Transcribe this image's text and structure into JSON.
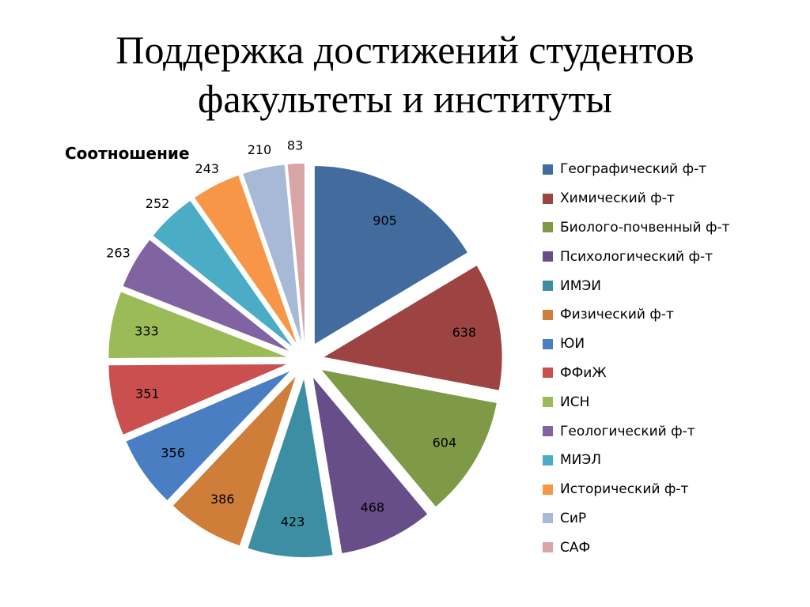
{
  "slide": {
    "title_line1": "Поддержка достижений студентов",
    "title_line2": "факультеты и институты"
  },
  "chart_data": {
    "type": "pie",
    "title": "Соотношение",
    "legend_position": "right",
    "exploded": true,
    "categories": [
      "Географический ф-т",
      "Химический ф-т",
      "Биолого-почвенный ф-т",
      "Психологический ф-т",
      "ИМЭИ",
      "Физический ф-т",
      "ЮИ",
      "ФФиЖ",
      "ИСН",
      "Геологический ф-т",
      "МИЭЛ",
      "Исторический ф-т",
      "СиР",
      "САФ"
    ],
    "values": [
      905,
      638,
      604,
      468,
      423,
      386,
      356,
      351,
      333,
      263,
      252,
      243,
      210,
      83
    ],
    "colors": [
      "#426C9E",
      "#9D4342",
      "#7F9A47",
      "#684E88",
      "#3C8FA3",
      "#CF7E3A",
      "#4A7EC2",
      "#C9504E",
      "#9BBB59",
      "#8064A2",
      "#4BACC6",
      "#F79646",
      "#A8B9D8",
      "#D9A4A4"
    ]
  }
}
